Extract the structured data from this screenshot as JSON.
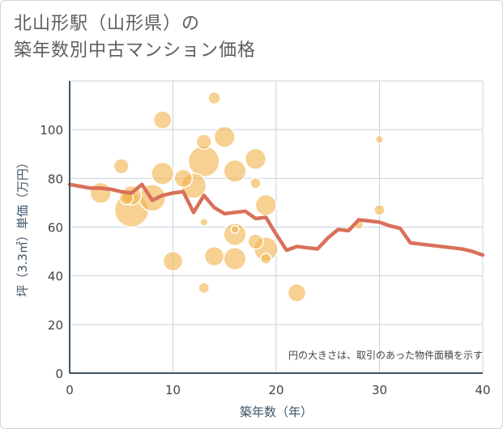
{
  "title_line1": "北山形駅（山形県）の",
  "title_line2": "築年数別中古マンション価格",
  "chart_data": {
    "type": "scatter",
    "xlabel": "築年数（年）",
    "ylabel": "坪（3.3㎡）単価（万円）",
    "xlim": [
      0,
      40
    ],
    "ylim": [
      0,
      120
    ],
    "xticks": [
      0,
      10,
      20,
      30,
      40
    ],
    "yticks": [
      0,
      20,
      40,
      60,
      80,
      100
    ],
    "grid": true,
    "note": "円の大きさは、取引のあった物件面積を示す",
    "colors": {
      "bubble": "#f2b24a",
      "line": "#d9705a",
      "grid": "#c8d3de",
      "axis": "#3f5568"
    },
    "bubbles": [
      {
        "x": 3,
        "y": 74,
        "size": 0.55
      },
      {
        "x": 5,
        "y": 85,
        "size": 0.35
      },
      {
        "x": 5.5,
        "y": 72,
        "size": 0.3
      },
      {
        "x": 6,
        "y": 67,
        "size": 1.0
      },
      {
        "x": 6,
        "y": 73,
        "size": 0.5
      },
      {
        "x": 8,
        "y": 72,
        "size": 0.75
      },
      {
        "x": 9,
        "y": 104,
        "size": 0.45
      },
      {
        "x": 9,
        "y": 82,
        "size": 0.6
      },
      {
        "x": 10,
        "y": 46,
        "size": 0.5
      },
      {
        "x": 11,
        "y": 80,
        "size": 0.45
      },
      {
        "x": 12,
        "y": 77,
        "size": 0.7
      },
      {
        "x": 13,
        "y": 87,
        "size": 0.9
      },
      {
        "x": 13,
        "y": 95,
        "size": 0.35
      },
      {
        "x": 13,
        "y": 62,
        "size": 0.1
      },
      {
        "x": 13,
        "y": 35,
        "size": 0.2
      },
      {
        "x": 14,
        "y": 113,
        "size": 0.25
      },
      {
        "x": 14,
        "y": 48,
        "size": 0.5
      },
      {
        "x": 15,
        "y": 97,
        "size": 0.55
      },
      {
        "x": 16,
        "y": 83,
        "size": 0.6
      },
      {
        "x": 16,
        "y": 57,
        "size": 0.6
      },
      {
        "x": 16,
        "y": 47,
        "size": 0.6
      },
      {
        "x": 16,
        "y": 59,
        "size": 0.1
      },
      {
        "x": 18,
        "y": 88,
        "size": 0.55
      },
      {
        "x": 18,
        "y": 78,
        "size": 0.2
      },
      {
        "x": 18,
        "y": 54,
        "size": 0.35
      },
      {
        "x": 19,
        "y": 69,
        "size": 0.55
      },
      {
        "x": 19,
        "y": 51,
        "size": 0.65
      },
      {
        "x": 19,
        "y": 47,
        "size": 0.2
      },
      {
        "x": 22,
        "y": 33,
        "size": 0.45
      },
      {
        "x": 28,
        "y": 61,
        "size": 0.15
      },
      {
        "x": 30,
        "y": 96,
        "size": 0.1
      },
      {
        "x": 30,
        "y": 67,
        "size": 0.2
      }
    ],
    "line": {
      "x": [
        0,
        2,
        3,
        4,
        5,
        6,
        7,
        8,
        9,
        10,
        11,
        12,
        13,
        14,
        15,
        16,
        17,
        18,
        19,
        20,
        21,
        22,
        23,
        24,
        25,
        26,
        27,
        28,
        29,
        30,
        31,
        32,
        33,
        34,
        35,
        36,
        37,
        38,
        39,
        40
      ],
      "y": [
        77.5,
        76,
        76,
        75.5,
        74.5,
        74,
        77.5,
        71,
        73,
        74,
        74.5,
        66,
        73,
        68,
        65.5,
        66,
        66.5,
        63.5,
        64,
        57,
        50.5,
        52,
        51.5,
        51,
        55.5,
        59,
        58.5,
        63,
        62.5,
        62,
        60.5,
        59.5,
        53.5,
        53,
        52.5,
        52,
        51.5,
        51,
        50,
        48.5
      ]
    }
  }
}
